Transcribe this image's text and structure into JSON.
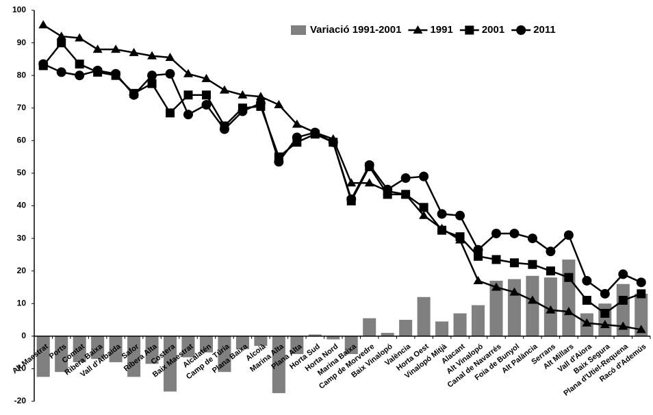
{
  "chart_data": {
    "type": "bar-line",
    "categories": [
      "Alt Maestrat",
      "Ports",
      "Comtat",
      "Ribera Baixa",
      "Vall d'Albaida",
      "Safor",
      "Ribera Alta",
      "Costera",
      "Baix Maestrat",
      "Alcalatén",
      "Camp de Túria",
      "Plana Baixa",
      "Alcoià",
      "Marina Alta",
      "Plana Alta",
      "Horta Sud",
      "Horta Nord",
      "Marina Baixa",
      "Camp de Morvedre",
      "Baix Vinalopó",
      "València",
      "Horta Oest",
      "Vinalopó Mitjà",
      "Alacant",
      "Alt Vinalopó",
      "Canal de Navarrés",
      "Foia de Bunyol",
      "Alt Palància",
      "Serrans",
      "Alt Millars",
      "Vall d'Aiora",
      "Baix Segura",
      "Plana d'Utiel-Requena",
      "Racó d'Ademús"
    ],
    "series": [
      {
        "name": "Variació 1991-2001",
        "type": "bar",
        "color": "#808080",
        "values": [
          -12.5,
          -11,
          -8,
          -7,
          -8,
          -12.5,
          -8.5,
          -17,
          -6.5,
          -5,
          -11,
          -4,
          -3,
          -17.5,
          -5.5,
          0.5,
          -1,
          -5.5,
          5.5,
          1,
          5,
          12,
          4.5,
          7,
          9.5,
          17,
          17.5,
          18.5,
          18,
          23.5,
          7,
          10,
          16,
          13
        ]
      },
      {
        "name": "1991",
        "type": "line",
        "marker": "triangle",
        "color": "#000000",
        "values": [
          95.5,
          92,
          91.5,
          88,
          88,
          87,
          86,
          85.5,
          80.5,
          79,
          75.5,
          74,
          73.5,
          71,
          65,
          62.5,
          60.5,
          47,
          47,
          44.5,
          43.5,
          37,
          33,
          29.5,
          17,
          15,
          13.5,
          11,
          8,
          7.5,
          4,
          3.5,
          3,
          2
        ]
      },
      {
        "name": "2001",
        "type": "line",
        "marker": "square",
        "color": "#000000",
        "values": [
          83,
          90,
          83.5,
          81,
          80,
          74.5,
          77.5,
          68.5,
          74,
          74,
          64.5,
          70,
          70.5,
          55,
          59.5,
          62,
          59.5,
          41.5,
          52,
          43.5,
          43.5,
          39.5,
          32.5,
          30.5,
          24.5,
          23.5,
          22.5,
          22,
          20,
          18,
          11,
          7,
          11,
          13
        ]
      },
      {
        "name": "2011",
        "type": "line",
        "marker": "circle",
        "color": "#000000",
        "values": [
          83.5,
          81,
          80,
          81.5,
          80.5,
          74,
          80,
          80.5,
          68,
          71,
          63.5,
          69,
          71.5,
          53.5,
          61,
          62.5,
          59.5,
          42,
          52.5,
          45,
          48.5,
          49,
          37.5,
          37,
          26.5,
          31.5,
          31.5,
          30,
          26,
          31,
          17,
          13,
          19,
          16.5
        ]
      }
    ],
    "ylim": [
      -20,
      100
    ],
    "yticks": [
      -20,
      -10,
      0,
      10,
      20,
      30,
      40,
      50,
      60,
      70,
      80,
      90,
      100
    ],
    "grid": false,
    "legend": "top-right"
  }
}
